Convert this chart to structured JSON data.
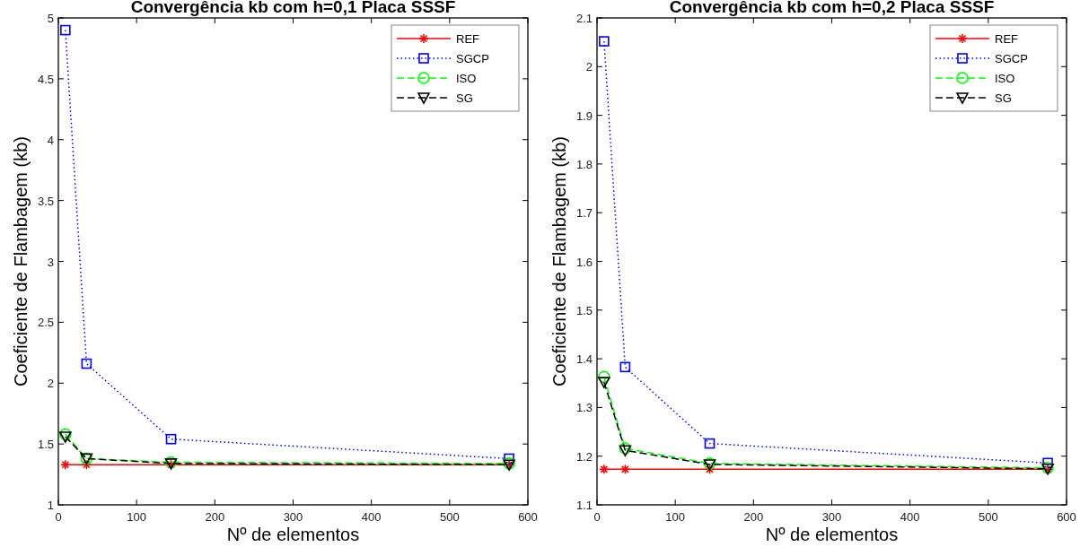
{
  "chart_data": [
    {
      "type": "line",
      "title": "Convergência kb com h=0,1 Placa SSSF",
      "xlabel": "Nº de elementos",
      "ylabel": "Coeficiente de Flambagem (kb)",
      "x": [
        9,
        36,
        144,
        576
      ],
      "xlim": [
        0,
        600
      ],
      "xticks": [
        0,
        100,
        200,
        300,
        400,
        500,
        600
      ],
      "ylim": [
        1,
        5
      ],
      "yticks": [
        1,
        1.5,
        2,
        2.5,
        3,
        3.5,
        4,
        4.5,
        5
      ],
      "grid": false,
      "legend": "top right",
      "series": [
        {
          "name": "REF",
          "color": "#ff0000",
          "marker": "cross",
          "line_style": "solid",
          "values": [
            1.33,
            1.33,
            1.33,
            1.33
          ]
        },
        {
          "name": "SGCP",
          "color": "#0000ff",
          "marker": "square",
          "line_style": "dotted",
          "values": [
            4.9,
            2.16,
            1.54,
            1.38
          ]
        },
        {
          "name": "ISO",
          "color": "#00ff00",
          "marker": "circle",
          "line_style": "dashed",
          "values": [
            1.58,
            1.38,
            1.35,
            1.34
          ]
        },
        {
          "name": "SG",
          "color": "#000000",
          "marker": "triangle",
          "line_style": "dashed",
          "values": [
            1.56,
            1.38,
            1.34,
            1.33
          ]
        }
      ]
    },
    {
      "type": "line",
      "title": "Convergência kb com h=0,2 Placa SSSF",
      "xlabel": "Nº de elementos",
      "ylabel": "Coeficiente de Flambagem (kb)",
      "x": [
        9,
        36,
        144,
        576
      ],
      "xlim": [
        0,
        600
      ],
      "xticks": [
        0,
        100,
        200,
        300,
        400,
        500,
        600
      ],
      "ylim": [
        1.1,
        2.1
      ],
      "yticks": [
        1.1,
        1.2,
        1.3,
        1.4,
        1.5,
        1.6,
        1.7,
        1.8,
        1.9,
        2,
        2.1
      ],
      "grid": false,
      "legend": "top right",
      "series": [
        {
          "name": "REF",
          "color": "#ff0000",
          "marker": "cross",
          "line_style": "solid",
          "values": [
            1.173,
            1.173,
            1.173,
            1.173
          ]
        },
        {
          "name": "SGCP",
          "color": "#0000ff",
          "marker": "square",
          "line_style": "dotted",
          "values": [
            2.052,
            1.383,
            1.226,
            1.186
          ]
        },
        {
          "name": "ISO",
          "color": "#00ff00",
          "marker": "circle",
          "line_style": "dashed",
          "values": [
            1.363,
            1.216,
            1.185,
            1.176
          ]
        },
        {
          "name": "SG",
          "color": "#000000",
          "marker": "triangle",
          "line_style": "dashed",
          "values": [
            1.352,
            1.212,
            1.183,
            1.174
          ]
        }
      ]
    }
  ]
}
